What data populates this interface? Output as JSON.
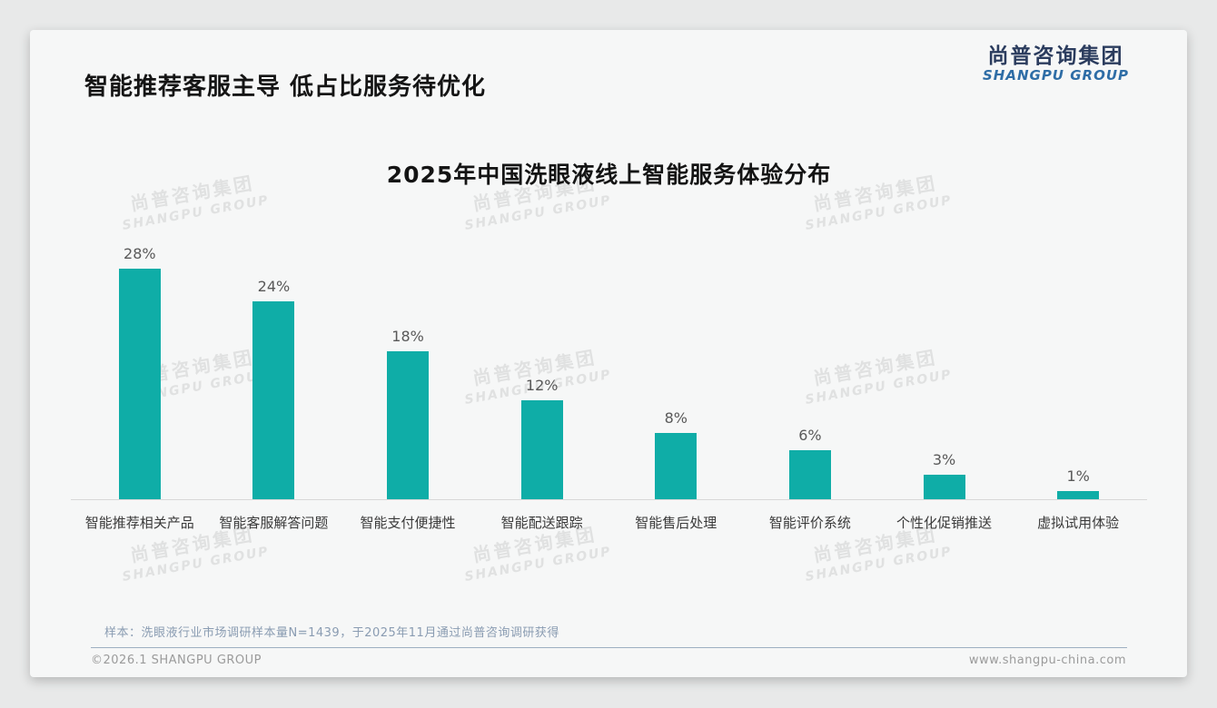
{
  "page": {
    "title": "智能推荐客服主导 低占比服务待优化",
    "note": "样本：洗眼液行业市场调研样本量N=1439，于2025年11月通过尚普咨询调研获得",
    "footer_left": "©2026.1 SHANGPU GROUP",
    "footer_right": "www.shangpu-china.com"
  },
  "logo": {
    "cn": "尚普咨询集团",
    "en": "SHANGPU GROUP"
  },
  "watermark": {
    "cn": "尚普咨询集团",
    "en": "SHANGPU GROUP"
  },
  "colors": {
    "bar": "#0fada7",
    "logo_cn": "#2b3c5e",
    "logo_en": "#2e6da6",
    "divider": "#9db0c2",
    "card_bg": "#f6f7f7",
    "page_bg": "#e8e9e9"
  },
  "chart_data": {
    "type": "bar",
    "title": "2025年中国洗眼液线上智能服务体验分布",
    "categories": [
      "智能推荐相关产品",
      "智能客服解答问题",
      "智能支付便捷性",
      "智能配送跟踪",
      "智能售后处理",
      "智能评价系统",
      "个性化促销推送",
      "虚拟试用体验"
    ],
    "values": [
      28,
      24,
      18,
      12,
      8,
      6,
      3,
      1
    ],
    "value_labels": [
      "28%",
      "24%",
      "18%",
      "12%",
      "8%",
      "6%",
      "3%",
      "1%"
    ],
    "unit": "%",
    "xlabel": "",
    "ylabel": "",
    "ylim": [
      0,
      30
    ],
    "grid": false,
    "legend": null,
    "bar_color": "#0fada7"
  }
}
